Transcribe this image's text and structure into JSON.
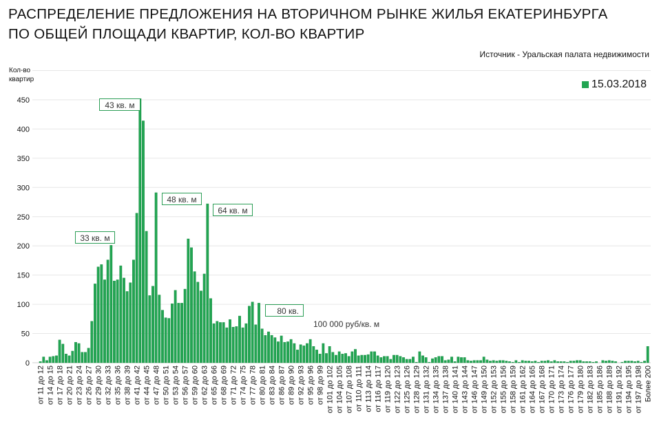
{
  "title_line1": "РАСПРЕДЕЛЕНИЕ ПРЕДЛОЖЕНИЯ НА ВТОРИЧНОМ РЫНКЕ ЖИЛЬЯ ЕКАТЕРИНБУРГА",
  "title_line2": "ПО ОБЩЕЙ ПЛОЩАДИ КВАРТИР, КОЛ-ВО КВАРТИР",
  "source": "Источник - Уральская палата недвижимости",
  "chart_data": {
    "type": "bar",
    "title": "РАСПРЕДЕЛЕНИЕ ПРЕДЛОЖЕНИЯ НА ВТОРИЧНОМ РЫНКЕ ЖИЛЬЯ ЕКАТЕРИНБУРГА ПО ОБЩЕЙ ПЛОЩАДИ КВАРТИР, КОЛ-ВО КВАРТИР",
    "ylabel_line1": "Кол-во",
    "ylabel_line2": "квартир",
    "xlabel": "",
    "ylim": [
      0,
      500
    ],
    "y_ticks": [
      0,
      50,
      100,
      150,
      200,
      250,
      300,
      350,
      400,
      450
    ],
    "grid": true,
    "legend_position": "top-right",
    "series": [
      {
        "name": "15.03.2018",
        "color": "#22a552"
      }
    ],
    "x_tick_labels": [
      "от 11 до 12",
      "от 14 до 15",
      "от 17 до 18",
      "от 20 до 21",
      "от 23 до 24",
      "от 26 до 27",
      "от 29 до 30",
      "от 32 до 33",
      "от 35 до 36",
      "от 38 до 39",
      "от 41 до 42",
      "от 44 до 45",
      "от 47 до 48",
      "от 50 до 51",
      "от 53 до 54",
      "от 56 до 57",
      "от 59 до 60",
      "от 62 до 63",
      "от 65 до 66",
      "от 68 до 69",
      "от 71 до 72",
      "от 74 до 75",
      "от 77 до 78",
      "от 80 до 81",
      "от 83 до 84",
      "от 86 до 87",
      "от 89 до 90",
      "от 92 до 93",
      "от 95 до 96",
      "от 98 до 99",
      "от 101 до 102",
      "от 104 до 105",
      "от 107 до 108",
      "от 110 до 111",
      "от 113 до 114",
      "от 116 до 117",
      "от 119 до 120",
      "от 122 до 123",
      "от 125 до 126",
      "от 128 до 129",
      "от 131 до 132",
      "от 134 до 135",
      "от 137 до 138",
      "от 140 до 141",
      "от 143 до 144",
      "от 146 до 147",
      "от 149 до 150",
      "от 152 до 153",
      "от 155 до 156",
      "от 158 до 159",
      "от 161 до 162",
      "от 164 до 165",
      "от 167 до 168",
      "от 170 до 171",
      "от 173 до 174",
      "от 176 до 177",
      "от 179 до 180",
      "от 182 до 183",
      "от 185 до 186",
      "от 188 до 189",
      "от 191 до 192",
      "от 194 до 195",
      "от 197 до 198",
      "Более 200"
    ],
    "values": [
      2,
      10,
      4,
      10,
      11,
      12,
      39,
      32,
      15,
      12,
      20,
      35,
      33,
      18,
      18,
      25,
      71,
      135,
      164,
      168,
      142,
      176,
      201,
      140,
      142,
      166,
      145,
      122,
      137,
      176,
      256,
      452,
      414,
      225,
      115,
      131,
      291,
      116,
      90,
      77,
      76,
      101,
      124,
      102,
      102,
      126,
      212,
      197,
      156,
      138,
      123,
      152,
      272,
      110,
      67,
      71,
      69,
      69,
      60,
      74,
      61,
      62,
      80,
      60,
      67,
      97,
      104,
      65,
      102,
      58,
      47,
      53,
      47,
      43,
      36,
      46,
      35,
      36,
      40,
      33,
      22,
      31,
      29,
      33,
      40,
      28,
      22,
      15,
      33,
      16,
      28,
      18,
      13,
      19,
      15,
      16,
      11,
      19,
      23,
      12,
      13,
      13,
      14,
      19,
      19,
      12,
      9,
      11,
      11,
      6,
      13,
      13,
      11,
      9,
      6,
      6,
      10,
      1,
      19,
      12,
      9,
      1,
      7,
      9,
      11,
      11,
      4,
      5,
      10,
      2,
      10,
      9,
      9,
      4,
      3,
      4,
      4,
      4,
      10,
      5,
      3,
      4,
      3,
      4,
      4,
      3,
      2,
      1,
      4,
      1,
      4,
      3,
      3,
      2,
      3,
      1,
      3,
      3,
      4,
      2,
      4,
      2,
      2,
      2,
      1,
      3,
      3,
      4,
      4,
      2,
      2,
      2,
      1,
      2,
      0,
      4,
      3,
      4,
      3,
      2,
      0,
      1,
      3,
      3,
      3,
      2,
      3,
      1,
      3,
      28
    ],
    "annotations": [
      "43 кв. м",
      "33 кв. м",
      "48 кв. м",
      "64 кв. м",
      "80 кв.",
      "100 000 руб/кв. м"
    ]
  }
}
